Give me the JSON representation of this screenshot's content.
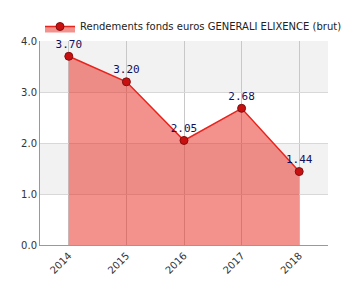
{
  "chart_data": {
    "type": "area",
    "categories": [
      "2014",
      "2015",
      "2016",
      "2017",
      "2018"
    ],
    "series": [
      {
        "name": "Rendements fonds euros GENERALI ELIXENCE (brut)",
        "color": "#e8231c",
        "marker": "circle",
        "values": [
          3.7,
          3.2,
          2.05,
          2.68,
          1.44
        ],
        "value_labels": [
          "3.70",
          "3.20",
          "2.05",
          "2.68",
          "1.44"
        ]
      }
    ],
    "ylim": [
      0,
      4
    ],
    "yticks": [
      {
        "value": 0,
        "label": "0.0"
      },
      {
        "value": 1,
        "label": "1.0"
      },
      {
        "value": 2,
        "label": "2.0"
      },
      {
        "value": 3,
        "label": "3.0"
      },
      {
        "value": 4,
        "label": "4.0"
      }
    ],
    "grid": true,
    "legend": "top left",
    "data_labels": true
  }
}
